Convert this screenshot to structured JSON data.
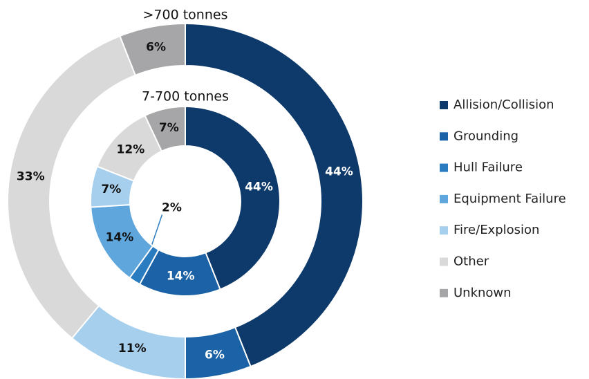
{
  "chart_data": {
    "type": "pie",
    "categories": [
      "Allision/Collision",
      "Grounding",
      "Hull Failure",
      "Equipment Failure",
      "Fire/Explosion",
      "Other",
      "Unknown"
    ],
    "colors": [
      "#0e3a6b",
      "#1b63a6",
      "#2a7cc1",
      "#5ea6dc",
      "#a6cfee",
      "#d9d9d9",
      "#a6a6a8"
    ],
    "series": [
      {
        "name": ">700 tonnes",
        "values": [
          44,
          6,
          0,
          0,
          11,
          33,
          6
        ],
        "value_labels": [
          "44%",
          "6%",
          null,
          null,
          "11%",
          "33%",
          "6%"
        ]
      },
      {
        "name": "7-700 tonnes",
        "values": [
          44,
          14,
          2,
          14,
          7,
          12,
          7
        ],
        "value_labels": [
          "44%",
          "14%",
          "2%",
          "14%",
          "7%",
          "12%",
          "7%"
        ]
      }
    ],
    "legend": "right"
  }
}
